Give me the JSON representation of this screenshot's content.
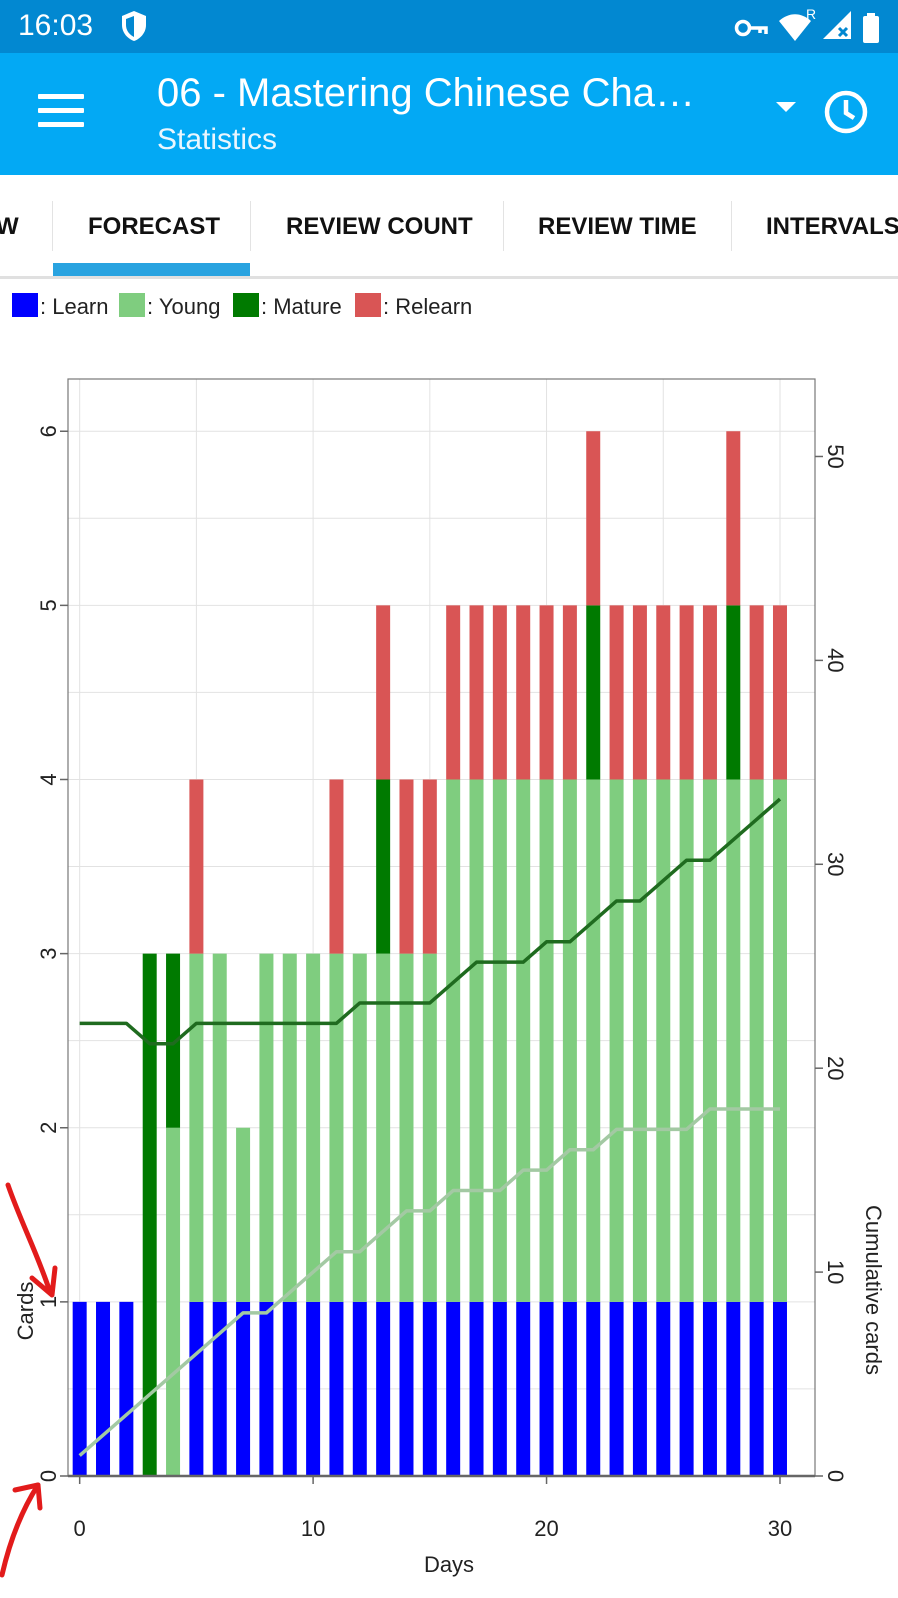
{
  "status_bar": {
    "time": "16:03",
    "roaming": "R",
    "icons": [
      "shield-icon",
      "vpn-key-icon",
      "wifi-icon",
      "signal-icon",
      "battery-icon"
    ]
  },
  "app_bar": {
    "title": "06 - Mastering Chinese Cha…",
    "subtitle": "Statistics",
    "icons": [
      "menu-icon",
      "dropdown-arrow-icon",
      "clock-icon"
    ]
  },
  "tabs": [
    {
      "label": "W",
      "active": false
    },
    {
      "label": "FORECAST",
      "active": true
    },
    {
      "label": "REVIEW COUNT",
      "active": false
    },
    {
      "label": "REVIEW TIME",
      "active": false
    },
    {
      "label": "INTERVALS",
      "active": false
    }
  ],
  "legend": [
    {
      "label": ": Learn",
      "color": "#0000ff"
    },
    {
      "label": ": Young",
      "color": "#7fcd7f"
    },
    {
      "label": ": Mature",
      "color": "#007a00"
    },
    {
      "label": ": Relearn",
      "color": "#d95555"
    }
  ],
  "chart_data": {
    "type": "bar",
    "title": "",
    "xlabel": "Days",
    "ylabel": "Cards",
    "y2label": "Cumulative cards",
    "xlim": [
      -0.5,
      31.5
    ],
    "ylim": [
      0,
      6.3
    ],
    "y2lim": [
      0,
      53.8
    ],
    "x_ticks": [
      0,
      10,
      20,
      30
    ],
    "y_ticks": [
      0,
      1,
      2,
      3,
      4,
      5,
      6
    ],
    "y2_ticks": [
      0,
      10,
      20,
      30,
      40,
      50
    ],
    "grid": true,
    "stacked": true,
    "days": [
      0,
      1,
      2,
      3,
      4,
      5,
      6,
      7,
      8,
      9,
      10,
      11,
      12,
      13,
      14,
      15,
      16,
      17,
      18,
      19,
      20,
      21,
      22,
      23,
      24,
      25,
      26,
      27,
      28,
      29,
      30
    ],
    "series": [
      {
        "name": "Learn",
        "color": "#0000ff",
        "values": [
          1,
          1,
          1,
          0,
          0,
          1,
          1,
          1,
          1,
          1,
          1,
          1,
          1,
          1,
          1,
          1,
          1,
          1,
          1,
          1,
          1,
          1,
          1,
          1,
          1,
          1,
          1,
          1,
          1,
          1,
          1
        ]
      },
      {
        "name": "Young",
        "color": "#7fcd7f",
        "values": [
          0,
          0,
          0,
          0,
          2,
          2,
          2,
          1,
          2,
          2,
          2,
          2,
          2,
          2,
          2,
          2,
          3,
          3,
          3,
          3,
          3,
          3,
          3,
          3,
          3,
          3,
          3,
          3,
          3,
          3,
          3
        ]
      },
      {
        "name": "Mature",
        "color": "#007a00",
        "values": [
          0,
          0,
          0,
          3,
          1,
          0,
          0,
          0,
          0,
          0,
          0,
          0,
          0,
          1,
          0,
          0,
          0,
          0,
          0,
          0,
          0,
          0,
          1,
          0,
          0,
          0,
          0,
          0,
          1,
          0,
          0
        ]
      },
      {
        "name": "Relearn",
        "color": "#d95555",
        "values": [
          0,
          0,
          0,
          0,
          0,
          1,
          0,
          0,
          0,
          0,
          0,
          1,
          0,
          1,
          1,
          1,
          1,
          1,
          1,
          1,
          1,
          1,
          1,
          1,
          1,
          1,
          1,
          1,
          1,
          1,
          1
        ]
      }
    ],
    "cumulative_lines": [
      {
        "color": "#1f6b1f",
        "points": [
          [
            0,
            22.2
          ],
          [
            2,
            22.2
          ],
          [
            3,
            21.2
          ],
          [
            4,
            21.2
          ],
          [
            5,
            22.2
          ],
          [
            10,
            22.2
          ],
          [
            11,
            22.2
          ],
          [
            12,
            23.2
          ],
          [
            15,
            23.2
          ],
          [
            16,
            24.2
          ],
          [
            17,
            25.2
          ],
          [
            19,
            25.2
          ],
          [
            20,
            26.2
          ],
          [
            21,
            26.2
          ],
          [
            22,
            27.2
          ],
          [
            23,
            28.2
          ],
          [
            24,
            28.2
          ],
          [
            25,
            29.2
          ],
          [
            26,
            30.2
          ],
          [
            27,
            30.2
          ],
          [
            28,
            31.2
          ],
          [
            29,
            32.2
          ],
          [
            30,
            33.2
          ]
        ]
      },
      {
        "color": "#a3c9a3",
        "points": [
          [
            0,
            1
          ],
          [
            1,
            2
          ],
          [
            2,
            3
          ],
          [
            3,
            4
          ],
          [
            4,
            5
          ],
          [
            5,
            6
          ],
          [
            6,
            7
          ],
          [
            7,
            8
          ],
          [
            8,
            8
          ],
          [
            9,
            9
          ],
          [
            10,
            10
          ],
          [
            11,
            11
          ],
          [
            12,
            11
          ],
          [
            13,
            12
          ],
          [
            14,
            13
          ],
          [
            15,
            13
          ],
          [
            16,
            14
          ],
          [
            17,
            14
          ],
          [
            18,
            14
          ],
          [
            19,
            15
          ],
          [
            20,
            15
          ],
          [
            21,
            16
          ],
          [
            22,
            16
          ],
          [
            23,
            17
          ],
          [
            24,
            17
          ],
          [
            25,
            17
          ],
          [
            26,
            17
          ],
          [
            27,
            18
          ],
          [
            28,
            18
          ],
          [
            29,
            18
          ],
          [
            30,
            18
          ]
        ]
      }
    ]
  }
}
